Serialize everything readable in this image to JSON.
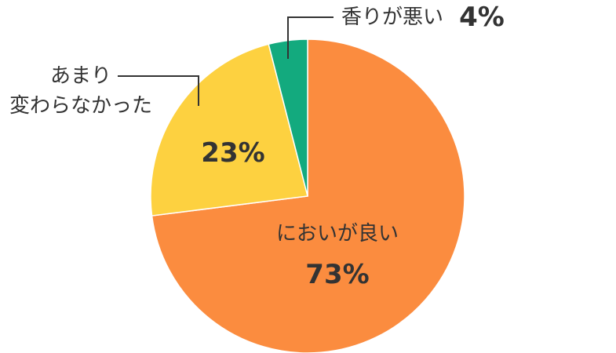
{
  "chart_data": {
    "type": "pie",
    "categories": [
      "においが良い",
      "あまり\n変わらなかった",
      "香りが悪い"
    ],
    "values": [
      73,
      23,
      4
    ],
    "value_labels": [
      "73%",
      "23%",
      "4%"
    ],
    "colors": [
      "#fb8c3f",
      "#fdd140",
      "#13aa7e"
    ]
  }
}
